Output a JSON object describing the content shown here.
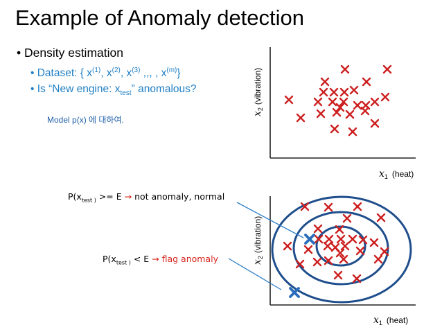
{
  "title": "Example of Anomaly detection",
  "bullet": "Density estimation",
  "dataset_label": "Dataset: { x",
  "dataset_sups": [
    "(1)",
    "(2)",
    "(3)",
    "(m)"
  ],
  "dataset_sep": ", ",
  "dataset_dots": " ,,, , ",
  "dataset_end": "}",
  "question_pre": "Is “New engine: x",
  "question_sub": "test",
  "question_post": "” anomalous?",
  "model_note": "Model p(x) 에 대하여.",
  "cond_normal": {
    "pre": "P(x",
    "sub": "test )",
    "mid": " >= E ",
    "arrow": "→",
    "result": " not anomaly, normal"
  },
  "cond_flag": {
    "pre": "P(x",
    "sub": "test )",
    "mid": " < E ",
    "arrow": "→",
    "result": " flag anomaly"
  },
  "plot_top": {
    "x_label_var": "x",
    "x_label_sub": "1",
    "x_label_text": "(heat)",
    "y_label_var": "x",
    "y_label_sub": "2",
    "y_label_text": "(vibration)"
  },
  "plot_bottom": {
    "x_label_var": "x",
    "x_label_sub": "1",
    "x_label_text": "(heat)",
    "y_label_var": "x",
    "y_label_sub": "2",
    "y_label_text": "(vibration)"
  },
  "colors": {
    "cross_red": "#cc1f1f",
    "cross_blue": "#2a6ebb",
    "circle": "#1f4e8c",
    "arrow_blue": "#2f7fc8",
    "text_blue": "#1f7fc4",
    "flag_red": "#d7261e"
  }
}
